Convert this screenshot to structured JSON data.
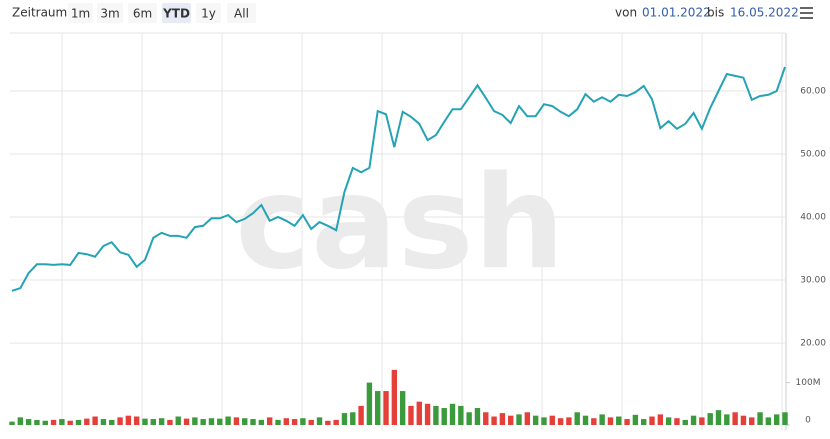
{
  "toolbar": {
    "label": "Zeitraum",
    "buttons": [
      "1m",
      "3m",
      "6m",
      "YTD",
      "1y",
      "All"
    ],
    "selected_index": 3,
    "from_label": "von",
    "from": "01.01.2022",
    "to_label": "bis",
    "to": "16.05.2022"
  },
  "chart_data": [
    {
      "type": "line",
      "watermark": "cash",
      "color": "#24a3b5",
      "grid": true,
      "ylim": [
        18.9,
        69.2
      ],
      "yticks": [
        {
          "value": 20,
          "label": "20.00"
        },
        {
          "value": 30,
          "label": "30.00"
        },
        {
          "value": 40,
          "label": "40.00"
        },
        {
          "value": 50,
          "label": "50.00"
        },
        {
          "value": 60,
          "label": "60.00"
        }
      ],
      "values": [
        28.3,
        28.7,
        31.1,
        32.5,
        32.5,
        32.4,
        32.5,
        32.4,
        34.3,
        34.1,
        33.7,
        35.4,
        36.0,
        34.4,
        34.0,
        32.1,
        33.2,
        36.7,
        37.5,
        37.0,
        37.0,
        36.7,
        38.4,
        38.6,
        39.8,
        39.8,
        40.3,
        39.2,
        39.7,
        40.6,
        41.9,
        39.4,
        40.0,
        39.4,
        38.6,
        40.3,
        38.1,
        39.2,
        38.6,
        37.9,
        44.0,
        47.8,
        47.1,
        47.8,
        56.8,
        56.3,
        51.1,
        56.7,
        55.9,
        54.8,
        52.2,
        53.0,
        55.1,
        57.1,
        57.1,
        59.0,
        60.9,
        58.9,
        56.8,
        56.2,
        54.9,
        57.6,
        56.0,
        56.0,
        57.9,
        57.6,
        56.7,
        56.0,
        57.1,
        59.5,
        58.3,
        59.0,
        58.3,
        59.4,
        59.2,
        59.8,
        60.8,
        58.7,
        54.1,
        55.2,
        54.0,
        54.8,
        56.5,
        54.0,
        57.3,
        60.0,
        62.7,
        62.4,
        62.1,
        58.6,
        59.2,
        59.4,
        60.0,
        63.8
      ]
    },
    {
      "type": "bar",
      "up_color": "#3b9a3b",
      "down_color": "#e53f3a",
      "ylim": [
        0,
        165
      ],
      "yticks": [
        0,
        {
          "value": 100,
          "label": "100M"
        }
      ],
      "values": [
        8,
        18,
        14,
        12,
        10,
        12,
        14,
        10,
        12,
        15,
        20,
        14,
        12,
        18,
        22,
        20,
        15,
        14,
        16,
        12,
        20,
        15,
        18,
        14,
        16,
        15,
        20,
        18,
        16,
        14,
        12,
        18,
        12,
        16,
        14,
        16,
        12,
        18,
        10,
        12,
        28,
        30,
        45,
        100,
        80,
        80,
        130,
        80,
        45,
        55,
        50,
        45,
        40,
        50,
        45,
        30,
        40,
        30,
        20,
        28,
        22,
        25,
        30,
        22,
        18,
        22,
        16,
        18,
        30,
        22,
        16,
        25,
        18,
        20,
        14,
        24,
        14,
        20,
        25,
        18,
        16,
        12,
        22,
        18,
        28,
        35,
        25,
        30,
        22,
        18,
        30,
        18,
        25,
        30
      ]
    }
  ]
}
